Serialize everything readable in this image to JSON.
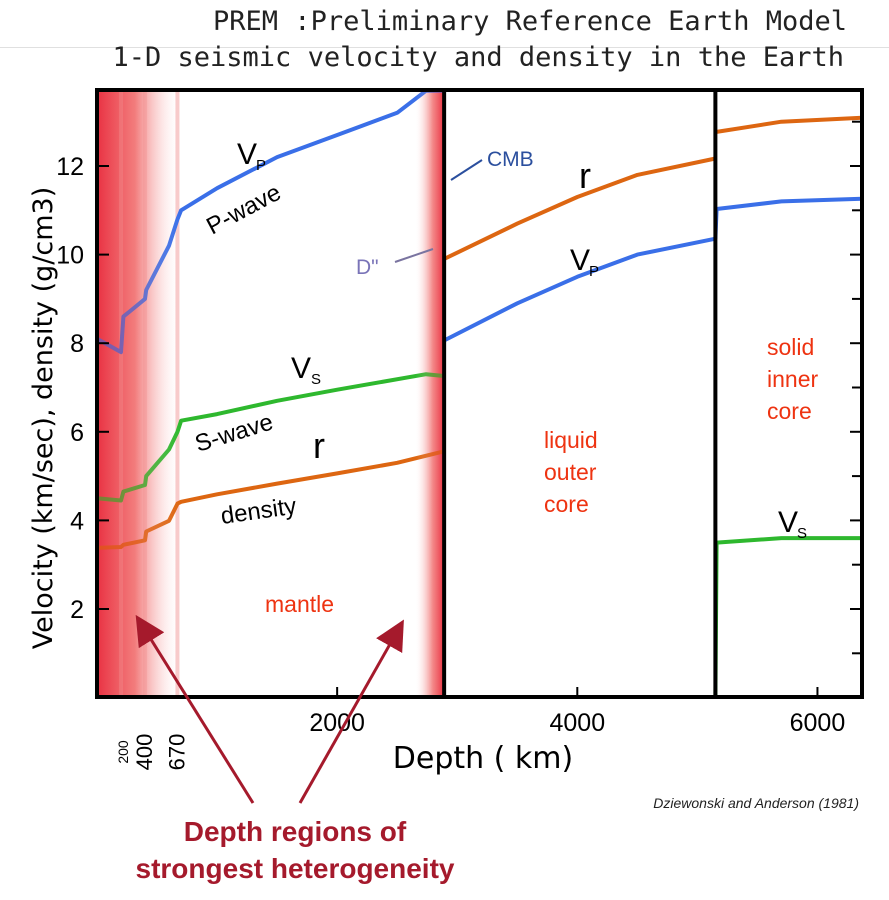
{
  "title_line1": "PREM :Preliminary Reference Earth Model",
  "title_line2": "1-D seismic velocity and density in the Earth",
  "credit": "Dziewonski and Anderson (1981)",
  "callout_line1": "Depth regions of",
  "callout_line2": "strongest heterogeneity",
  "chart_data": {
    "type": "line",
    "xlabel": "Depth ( km)",
    "ylabel": "Velocity (km/sec), density (g/cm3)",
    "xlim": [
      0,
      6371
    ],
    "ylim": [
      0,
      14
    ],
    "x_ticks": [
      2000,
      4000,
      6000
    ],
    "y_ticks": [
      2,
      4,
      6,
      8,
      10,
      12
    ],
    "depth_markers": [
      {
        "depth": 200,
        "label": "200"
      },
      {
        "depth": 400,
        "label": "400"
      },
      {
        "depth": 670,
        "label": "670"
      }
    ],
    "boundaries": [
      2891,
      5150
    ],
    "highlight_bands": [
      {
        "from": 0,
        "to": 700
      },
      {
        "from": 2650,
        "to": 2891
      }
    ],
    "colors": {
      "vp": "#3a6fe8",
      "vs": "#2eb82e",
      "density": "#dd6611",
      "highlight": "#e8283a",
      "region_label": "#ee3311",
      "annotation": "#2b4f9e",
      "callout": "#a51a2c"
    },
    "series": [
      {
        "key": "vp",
        "segments": [
          {
            "x": [
              0,
              200,
              220,
              400,
              410,
              600,
              670,
              700,
              1000,
              1500,
              2000,
              2500,
              2741,
              2891
            ],
            "y": [
              8.1,
              7.8,
              8.6,
              9.0,
              9.2,
              10.2,
              10.8,
              11.0,
              11.5,
              12.2,
              12.7,
              13.2,
              13.7,
              13.7
            ]
          },
          {
            "x": [
              2891,
              3500,
              4000,
              4500,
              5150
            ],
            "y": [
              8.06,
              8.9,
              9.5,
              10.0,
              10.36
            ]
          },
          {
            "x": [
              5150,
              5160,
              5700,
              6371
            ],
            "y": [
              10.36,
              11.03,
              11.2,
              11.26
            ]
          }
        ]
      },
      {
        "key": "vs",
        "segments": [
          {
            "x": [
              0,
              200,
              220,
              400,
              410,
              600,
              670,
              700,
              1000,
              1500,
              2000,
              2741,
              2891
            ],
            "y": [
              4.5,
              4.45,
              4.65,
              4.8,
              5.0,
              5.6,
              6.0,
              6.25,
              6.4,
              6.7,
              6.95,
              7.3,
              7.26
            ]
          },
          {
            "x": [
              5150,
              5160,
              5700,
              6371
            ],
            "y": [
              0.0,
              3.5,
              3.6,
              3.6
            ]
          }
        ]
      },
      {
        "key": "density",
        "segments": [
          {
            "x": [
              0,
              200,
              220,
              400,
              410,
              600,
              670,
              700,
              1000,
              1500,
              2000,
              2500,
              2891
            ],
            "y": [
              3.38,
              3.4,
              3.45,
              3.55,
              3.75,
              3.99,
              4.38,
              4.42,
              4.59,
              4.83,
              5.06,
              5.3,
              5.56
            ]
          },
          {
            "x": [
              2891,
              3500,
              4000,
              4500,
              5150
            ],
            "y": [
              9.9,
              10.7,
              11.3,
              11.8,
              12.17
            ]
          },
          {
            "x": [
              5150,
              5160,
              5700,
              6371
            ],
            "y": [
              12.76,
              12.77,
              13.0,
              13.09
            ]
          }
        ]
      }
    ],
    "curve_labels": {
      "vp_main": "P",
      "vp_prefix": "V",
      "p_wave": "P-wave",
      "vs_main": "S",
      "vs_prefix": "V",
      "s_wave": "S-wave",
      "rho": "r",
      "density": "density",
      "cmb": "CMB",
      "d_double_prime": "D\"",
      "mantle": "mantle",
      "liquid_outer_core": [
        "liquid",
        "outer",
        "core"
      ],
      "solid_inner_core": [
        "solid",
        "inner",
        "core"
      ]
    }
  }
}
